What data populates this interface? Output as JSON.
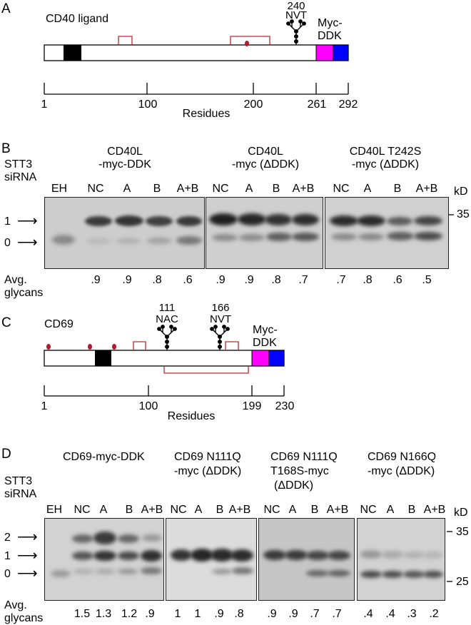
{
  "panelA": {
    "letter": "A",
    "protein": "CD40 ligand",
    "glyco_pos": "240",
    "glyco_seq": "NVT",
    "tag_line1": "Myc-",
    "tag_line2": "DDK",
    "ticks": [
      "1",
      "100",
      "200",
      "261",
      "292"
    ],
    "axis_label": "Residues"
  },
  "panelB": {
    "letter": "B",
    "stt3_line1": "STT3",
    "stt3_line2": "siRNA",
    "blots": [
      {
        "title1": "CD40L",
        "title2": "-myc-DDK",
        "lanes": [
          "EH",
          "NC",
          "A",
          "B",
          "A+B"
        ],
        "glycans": [
          ".9",
          ".9",
          ".8",
          ".6"
        ]
      },
      {
        "title1": "CD40L",
        "title2": "-myc (ΔDDK)",
        "lanes": [
          "NC",
          "A",
          "B",
          "A+B"
        ],
        "glycans": [
          ".9",
          ".9",
          ".8",
          ".7"
        ]
      },
      {
        "title1": "CD40L T242S",
        "title2": "-myc (ΔDDK)",
        "lanes": [
          "NC",
          "A",
          "B",
          "A+B"
        ],
        "glycans": [
          ".7",
          ".8",
          ".6",
          ".5"
        ]
      }
    ],
    "kd": "kD",
    "marker": "35",
    "arrow1": "1",
    "arrow0": "0",
    "avg1": "Avg.",
    "avg2": "glycans"
  },
  "panelC": {
    "letter": "C",
    "protein": "CD69",
    "site1_pos": "111",
    "site1_seq": "NAC",
    "site2_pos": "166",
    "site2_seq": "NVT",
    "tag_line1": "Myc-",
    "tag_line2": "DDK",
    "ticks": [
      "1",
      "100",
      "199",
      "230"
    ],
    "axis_label": "Residues"
  },
  "panelD": {
    "letter": "D",
    "stt3_line1": "STT3",
    "stt3_line2": "siRNA",
    "blots": [
      {
        "title1": "CD69-myc-DDK",
        "title2": "",
        "title3": "",
        "lanes": [
          "EH",
          "NC",
          "A",
          "B",
          "A+B"
        ],
        "glycans": [
          "1.5",
          "1.3",
          "1.2",
          ".9"
        ]
      },
      {
        "title1": "CD69 N111Q",
        "title2": "-myc (ΔDDK)",
        "title3": "",
        "lanes": [
          "NC",
          "A",
          "B",
          "A+B"
        ],
        "glycans": [
          "1",
          "1",
          ".9",
          ".8"
        ]
      },
      {
        "title1": "CD69 N111Q",
        "title2": "T168S-myc",
        "title3": "(ΔDDK)",
        "lanes": [
          "NC",
          "A",
          "B",
          "A+B"
        ],
        "glycans": [
          ".9",
          ".9",
          ".7",
          ".7"
        ]
      },
      {
        "title1": "CD69 N166Q",
        "title2": "-myc (ΔDDK)",
        "title3": "",
        "lanes": [
          "NC",
          "A",
          "B",
          "A+B"
        ],
        "glycans": [
          ".4",
          ".4",
          ".3",
          ".2"
        ]
      }
    ],
    "kd": "kD",
    "marker35": "35",
    "marker25": "25",
    "arrow2": "2",
    "arrow1": "1",
    "arrow0": "0",
    "avg1": "Avg.",
    "avg2": "glycans"
  },
  "colors": {
    "myc": "#ff00ff",
    "ddk": "#0000ff",
    "disulfide": "#c0272d",
    "cys_dot": "#b01c2e"
  }
}
